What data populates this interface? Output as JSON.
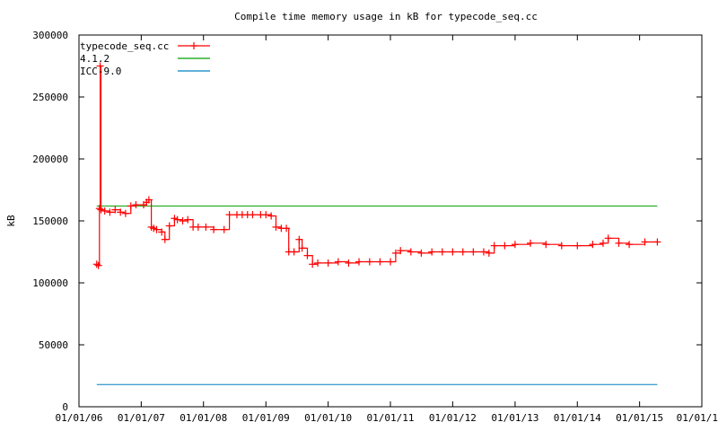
{
  "chart_data": {
    "type": "line",
    "title": "Compile time memory usage in kB for typecode_seq.cc",
    "xlabel": "",
    "ylabel": "kB",
    "ylim": [
      0,
      300000
    ],
    "yticks": [
      0,
      50000,
      100000,
      150000,
      200000,
      250000,
      300000
    ],
    "ytick_labels": [
      "0",
      "50000",
      "100000",
      "150000",
      "200000",
      "250000",
      "300000"
    ],
    "xlim": [
      "2006-01-01",
      "2016-01-01"
    ],
    "xticks": [
      "2006-01-01",
      "2007-01-01",
      "2008-01-01",
      "2009-01-01",
      "2010-01-01",
      "2011-01-01",
      "2012-01-01",
      "2013-01-01",
      "2014-01-01",
      "2015-01-01",
      "2016-01-01"
    ],
    "xtick_labels": [
      "01/01/06",
      "01/01/07",
      "01/01/08",
      "01/01/09",
      "01/01/10",
      "01/01/11",
      "01/01/12",
      "01/01/13",
      "01/01/14",
      "01/01/15",
      "01/01/1"
    ],
    "grid": false,
    "legend_position": "top-left",
    "series": [
      {
        "name": "typecode_seq.cc",
        "color": "#ff0000",
        "style": "linespoints",
        "x": [
          "2006-04-15",
          "2006-04-25",
          "2006-05-01",
          "2006-05-05",
          "2006-05-10",
          "2006-06-01",
          "2006-07-01",
          "2006-08-01",
          "2006-09-01",
          "2006-10-01",
          "2006-11-01",
          "2006-12-01",
          "2007-01-15",
          "2007-02-01",
          "2007-02-15",
          "2007-03-01",
          "2007-03-15",
          "2007-04-01",
          "2007-05-01",
          "2007-05-20",
          "2007-06-15",
          "2007-07-15",
          "2007-08-01",
          "2007-09-01",
          "2007-10-01",
          "2007-11-01",
          "2007-12-01",
          "2008-01-15",
          "2008-03-01",
          "2008-05-01",
          "2008-06-01",
          "2008-07-15",
          "2008-08-15",
          "2008-09-15",
          "2008-10-15",
          "2008-12-01",
          "2009-01-01",
          "2009-02-01",
          "2009-03-01",
          "2009-04-01",
          "2009-05-01",
          "2009-05-15",
          "2009-06-15",
          "2009-07-15",
          "2009-08-01",
          "2009-09-01",
          "2009-10-01",
          "2009-11-01",
          "2010-01-01",
          "2010-03-01",
          "2010-05-01",
          "2010-07-01",
          "2010-09-01",
          "2010-11-01",
          "2011-01-01",
          "2011-02-01",
          "2011-03-01",
          "2011-05-01",
          "2011-07-01",
          "2011-09-01",
          "2011-11-01",
          "2012-01-01",
          "2012-03-01",
          "2012-05-01",
          "2012-07-01",
          "2012-08-01",
          "2012-09-01",
          "2012-11-01",
          "2013-01-01",
          "2013-04-01",
          "2013-07-01",
          "2013-10-01",
          "2014-01-01",
          "2014-04-01",
          "2014-06-01",
          "2014-07-01",
          "2014-09-01",
          "2014-11-01",
          "2015-02-01",
          "2015-04-15"
        ],
        "y": [
          115000,
          114000,
          160000,
          275000,
          159000,
          158000,
          157000,
          159000,
          157000,
          156000,
          162000,
          163000,
          163000,
          165000,
          167000,
          145000,
          144000,
          143000,
          141000,
          135000,
          146000,
          152000,
          151000,
          150000,
          151000,
          145000,
          145000,
          145000,
          143000,
          143000,
          155000,
          155000,
          155000,
          155000,
          155000,
          155000,
          155000,
          154000,
          145000,
          144000,
          144000,
          125000,
          125000,
          135000,
          128000,
          122000,
          115000,
          116000,
          116000,
          117000,
          116000,
          117000,
          117000,
          117000,
          117000,
          124000,
          126000,
          125000,
          124000,
          125000,
          125000,
          125000,
          125000,
          125000,
          125000,
          124000,
          130000,
          130000,
          131000,
          132000,
          131000,
          130000,
          130000,
          131000,
          132000,
          136000,
          132000,
          131000,
          133000,
          133000
        ]
      },
      {
        "name": "4.1.2",
        "color": "#00a000",
        "style": "lines",
        "x": [
          "2006-04-15",
          "2015-04-15"
        ],
        "y": [
          162000,
          162000
        ]
      },
      {
        "name": "ICC-9.0",
        "color": "#0080c0",
        "style": "lines",
        "x": [
          "2006-04-15",
          "2015-04-15"
        ],
        "y": [
          18000,
          18000
        ]
      }
    ]
  }
}
